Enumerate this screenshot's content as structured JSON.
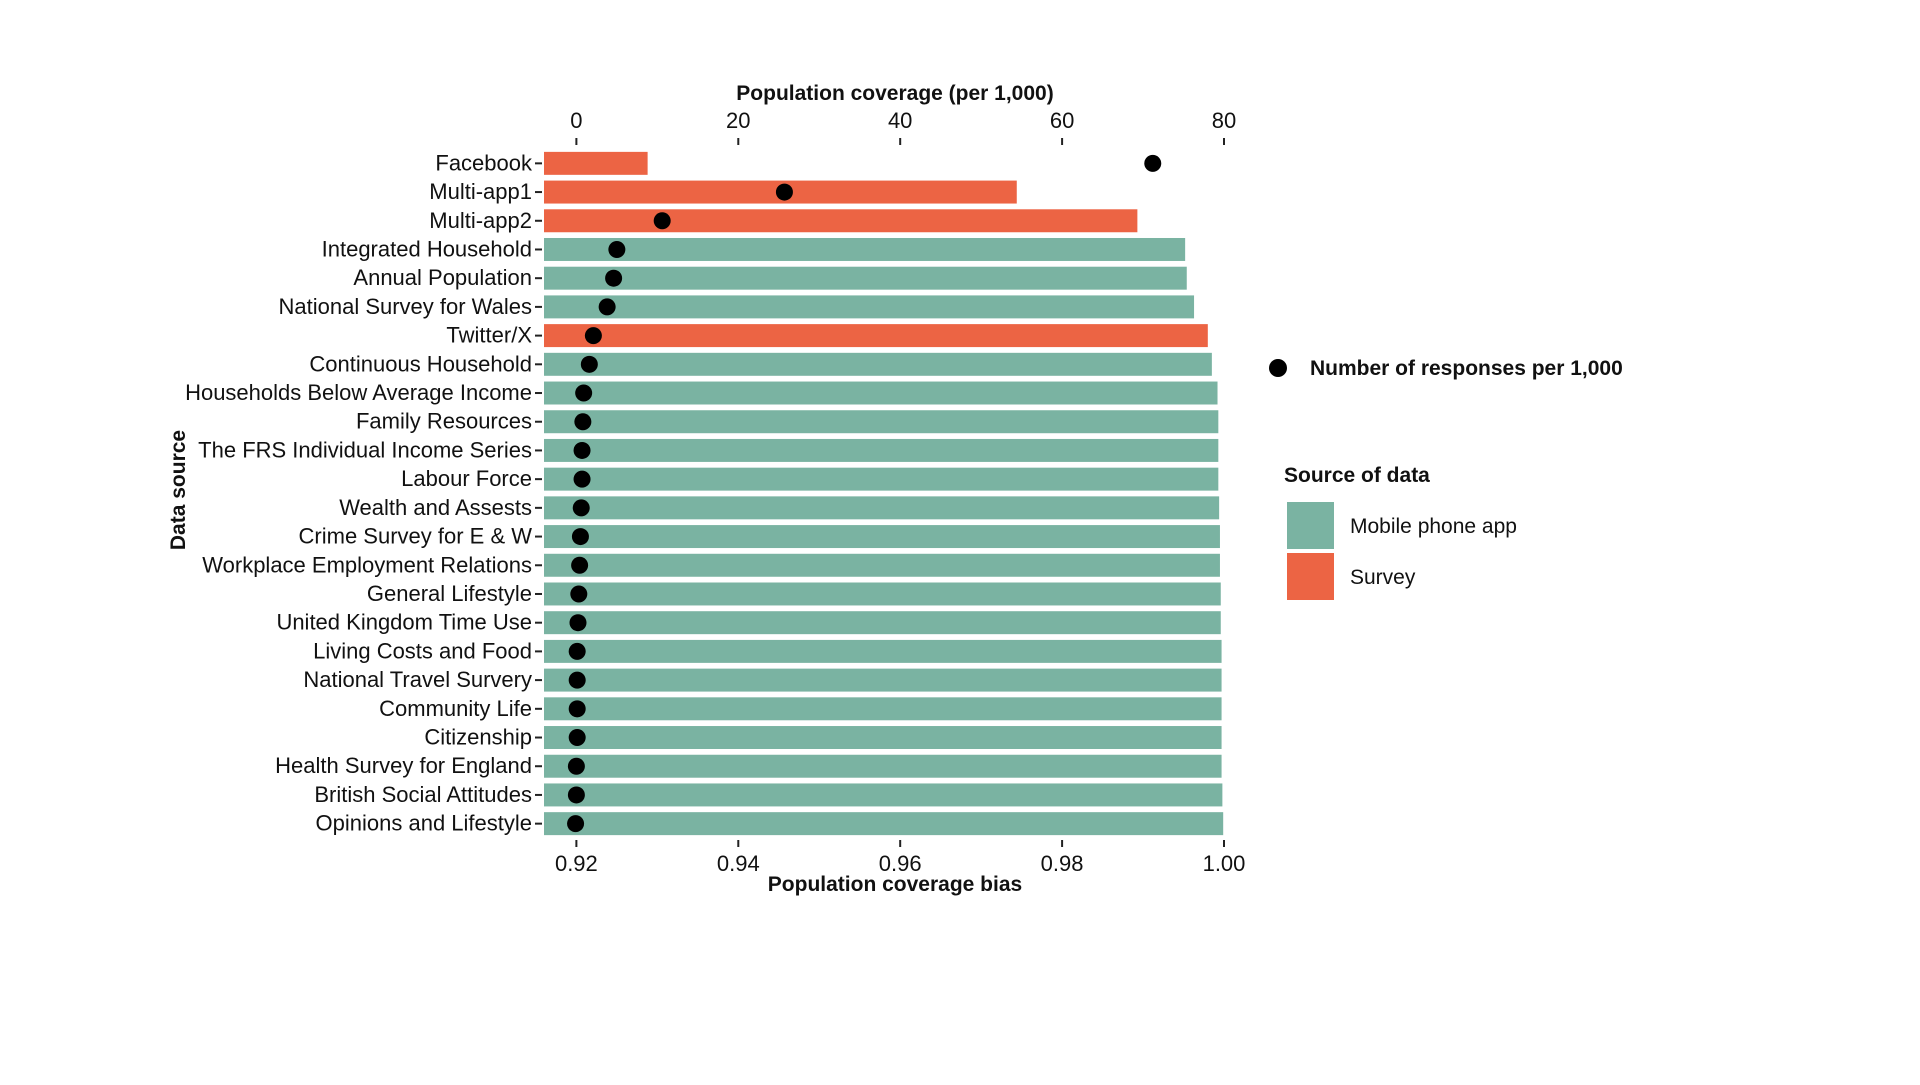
{
  "chart_data": {
    "type": "bar",
    "orientation": "horizontal",
    "categories": [
      "Facebook",
      "Multi-app1",
      "Multi-app2",
      "Integrated Household",
      "Annual Population",
      "National Survey for Wales",
      "Twitter/X",
      "Continuous Household",
      "Households Below Average Income",
      "Family Resources",
      "The FRS Individual Income Series",
      "Labour Force",
      "Wealth and Assests",
      "Crime Survey for E & W",
      "Workplace Employment Relations",
      "General Lifestyle",
      "United Kingdom Time Use",
      "Living Costs and Food",
      "National Travel Survery",
      "Community Life",
      "Citizenship",
      "Health Survey for England",
      "British Social Attitudes",
      "Opinions and Lifestyle"
    ],
    "series": [
      {
        "name": "Population coverage bias",
        "axis": "bottom",
        "mark": "bar",
        "values": [
          0.9288,
          0.9744,
          0.9893,
          0.9952,
          0.9954,
          0.9963,
          0.998,
          0.9985,
          0.9992,
          0.9993,
          0.9993,
          0.9993,
          0.9994,
          0.9995,
          0.9995,
          0.9996,
          0.9996,
          0.9997,
          0.9997,
          0.9997,
          0.9997,
          0.9997,
          0.9998,
          0.9999
        ]
      },
      {
        "name": "Number of responses per 1,000",
        "axis": "top",
        "mark": "point",
        "values": [
          71.2,
          25.7,
          10.6,
          5.0,
          4.6,
          3.8,
          2.1,
          1.6,
          0.9,
          0.8,
          0.7,
          0.7,
          0.6,
          0.5,
          0.4,
          0.3,
          0.2,
          0.1,
          0.1,
          0.1,
          0.1,
          0.0,
          0.0,
          -0.1
        ]
      }
    ],
    "source_type": [
      "Survey",
      "Survey",
      "Survey",
      "Mobile phone app",
      "Mobile phone app",
      "Mobile phone app",
      "Survey",
      "Mobile phone app",
      "Mobile phone app",
      "Mobile phone app",
      "Mobile phone app",
      "Mobile phone app",
      "Mobile phone app",
      "Mobile phone app",
      "Mobile phone app",
      "Mobile phone app",
      "Mobile phone app",
      "Mobile phone app",
      "Mobile phone app",
      "Mobile phone app",
      "Mobile phone app",
      "Mobile phone app",
      "Mobile phone app",
      "Mobile phone app"
    ],
    "xlabel": "Population coverage bias",
    "x2label": "Population coverage (per 1,000)",
    "ylabel": "Data source",
    "xlim": [
      0.916,
      1.0
    ],
    "x2lim": [
      -4,
      80
    ],
    "xticks": [
      "0.92",
      "0.94",
      "0.96",
      "0.98",
      "1.00"
    ],
    "xtick_values": [
      0.92,
      0.94,
      0.96,
      0.98,
      1.0
    ],
    "x2ticks": [
      "0",
      "20",
      "40",
      "60",
      "80"
    ],
    "x2tick_values": [
      0,
      20,
      40,
      60,
      80
    ],
    "grid": false,
    "legend_placement": "right",
    "legend": {
      "point_label": "Number of responses per 1,000",
      "fill_title": "Source of data",
      "fill_items": [
        {
          "label": "Mobile phone app",
          "color": "#7ab3a2"
        },
        {
          "label": "Survey",
          "color": "#ec6444"
        }
      ]
    },
    "colors": {
      "Mobile phone app": "#7ab3a2",
      "Survey": "#ec6444",
      "point": "#000000"
    }
  }
}
